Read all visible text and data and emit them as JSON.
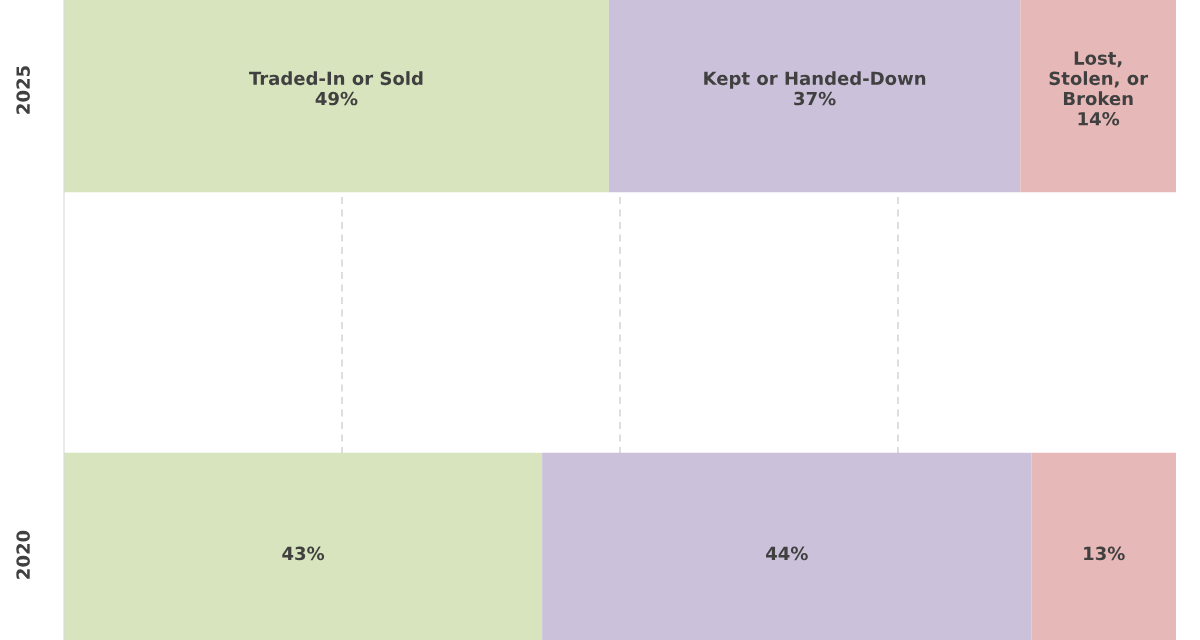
{
  "chart_data": {
    "type": "bar",
    "orientation": "horizontal",
    "stacked": true,
    "categories": [
      "2025",
      "2020"
    ],
    "series": [
      {
        "name": "Traded-In or Sold",
        "color": "#d7e4bd",
        "values": [
          49,
          43
        ],
        "value_labels": [
          "49%",
          "43%"
        ]
      },
      {
        "name": "Kept or Handed-Down",
        "color": "#ccc1da",
        "values": [
          37,
          44
        ],
        "value_labels": [
          "37%",
          "44%"
        ]
      },
      {
        "name": "Lost,\nStolen, or\nBroken",
        "color": "#e6b9b8",
        "values": [
          14,
          13
        ],
        "value_labels": [
          "14%",
          "13%"
        ]
      }
    ],
    "xticks": [
      {
        "value": 25,
        "label": null
      },
      {
        "value": 50,
        "label": null
      },
      {
        "value": 75,
        "label": null
      }
    ],
    "tick_labels": "y",
    "grid": "x",
    "legend": false
  }
}
